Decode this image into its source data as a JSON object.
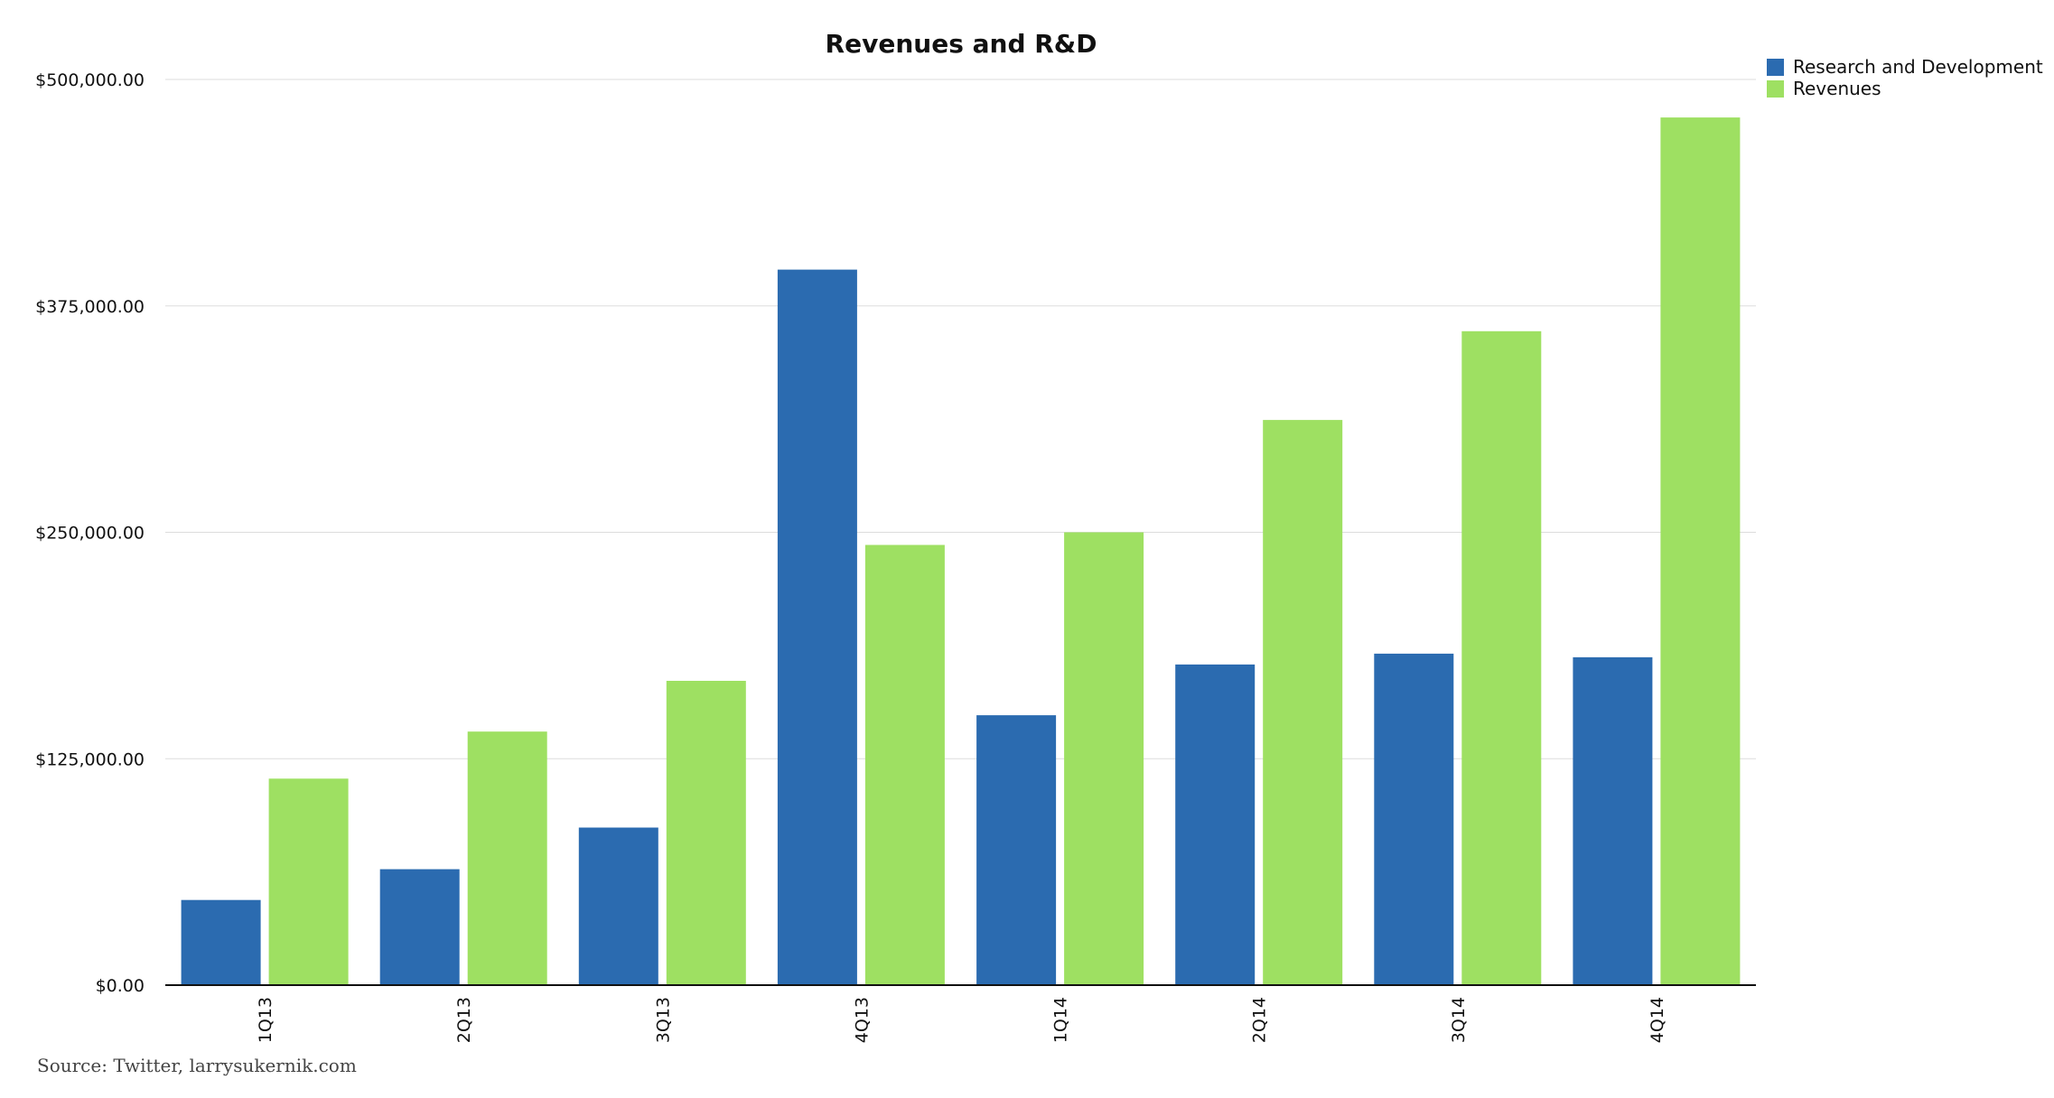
{
  "chart_data": {
    "type": "bar",
    "title": "Revenues and R&D",
    "xlabel": "",
    "ylabel": "",
    "categories": [
      "1Q13",
      "2Q13",
      "3Q13",
      "4Q13",
      "1Q14",
      "2Q14",
      "3Q14",
      "4Q14"
    ],
    "series": [
      {
        "name": "Research and Development",
        "color": "#2b6bb0",
        "values": [
          47000,
          64000,
          87000,
          395000,
          149000,
          177000,
          183000,
          181000
        ]
      },
      {
        "name": "Revenues",
        "color": "#9ee062",
        "values": [
          114000,
          140000,
          168000,
          243000,
          250000,
          312000,
          361000,
          479000
        ]
      }
    ],
    "ylim": [
      0,
      500000
    ],
    "yticks": [
      0,
      125000,
      250000,
      375000,
      500000
    ],
    "ytick_labels": [
      "$0.00",
      "$125,000.00",
      "$250,000.00",
      "$375,000.00",
      "$500,000.00"
    ],
    "grid": true,
    "legend_position": "top-right",
    "source": "Source: Twitter, larrysukernik.com"
  }
}
